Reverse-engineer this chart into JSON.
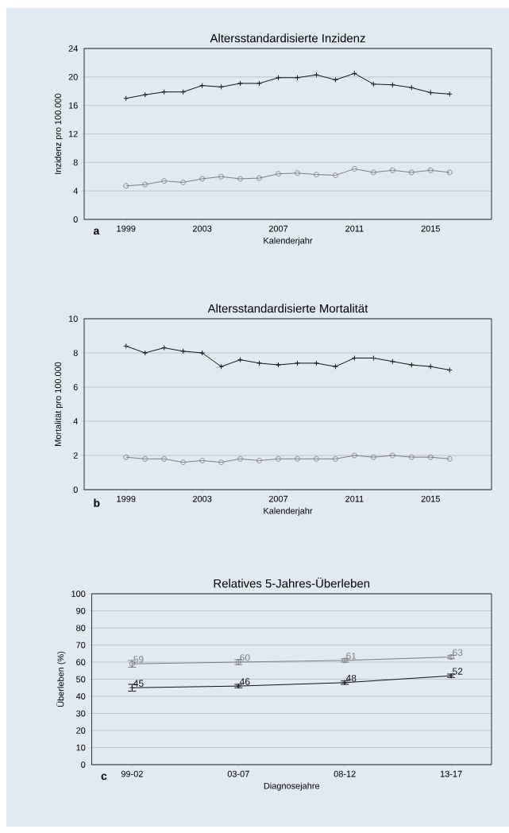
{
  "chart_data": [
    {
      "type": "line",
      "title": "Altersstandardisierte Inzidenz",
      "xlabel": "Kalenderjahr",
      "ylabel": "Inzidenz pro 100.000",
      "annotations": [
        "a"
      ],
      "x": [
        1999,
        2000,
        2001,
        2002,
        2003,
        2004,
        2005,
        2006,
        2007,
        2008,
        2009,
        2010,
        2011,
        2012,
        2013,
        2014,
        2015,
        2016
      ],
      "series": [
        {
          "color": "#111111",
          "marker": "cross",
          "values": [
            17.0,
            17.5,
            17.9,
            17.9,
            18.8,
            18.6,
            19.1,
            19.1,
            19.9,
            19.9,
            20.3,
            19.6,
            20.5,
            19.0,
            18.9,
            18.5,
            17.8,
            17.6
          ]
        },
        {
          "color": "#7f7f7f",
          "marker": "circle",
          "values": [
            4.7,
            4.9,
            5.4,
            5.2,
            5.7,
            6.0,
            5.7,
            5.8,
            6.4,
            6.5,
            6.3,
            6.2,
            7.1,
            6.6,
            6.9,
            6.6,
            6.9,
            6.6
          ]
        }
      ],
      "xlim": [
        1996.8,
        2018.2
      ],
      "xticks": [
        1999,
        2003,
        2007,
        2011,
        2015
      ],
      "ylim": [
        0,
        24
      ],
      "yticks": [
        0,
        4,
        8,
        12,
        16,
        20,
        24
      ],
      "grid": "y"
    },
    {
      "type": "line",
      "title": "Altersstandardisierte Mortalität",
      "xlabel": "Kalenderjahr",
      "ylabel": "Mortalität pro 100.000",
      "annotations": [
        "b"
      ],
      "x": [
        1999,
        2000,
        2001,
        2002,
        2003,
        2004,
        2005,
        2006,
        2007,
        2008,
        2009,
        2010,
        2011,
        2012,
        2013,
        2014,
        2015,
        2016
      ],
      "series": [
        {
          "color": "#111111",
          "marker": "cross",
          "values": [
            8.4,
            8.0,
            8.3,
            8.1,
            8.0,
            7.2,
            7.6,
            7.4,
            7.3,
            7.4,
            7.4,
            7.2,
            7.7,
            7.7,
            7.5,
            7.3,
            7.2,
            7.0
          ]
        },
        {
          "color": "#7f7f7f",
          "marker": "circle",
          "values": [
            1.9,
            1.8,
            1.8,
            1.6,
            1.7,
            1.6,
            1.8,
            1.7,
            1.8,
            1.8,
            1.8,
            1.8,
            2.0,
            1.9,
            2.0,
            1.9,
            1.9,
            1.8
          ]
        }
      ],
      "xlim": [
        1996.8,
        2018.2
      ],
      "xticks": [
        1999,
        2003,
        2007,
        2011,
        2015
      ],
      "ylim": [
        0,
        10
      ],
      "yticks": [
        0,
        2,
        4,
        6,
        8,
        10
      ],
      "grid": "y"
    },
    {
      "type": "line",
      "title": "Relatives 5-Jahres-Überleben",
      "xlabel": "Diagnosejahre",
      "ylabel": "Überleben (%)",
      "annotations": [
        "c"
      ],
      "categories": [
        "99-02",
        "03-07",
        "08-12",
        "13-17"
      ],
      "series": [
        {
          "color": "#7f7f7f",
          "marker": "circle",
          "values": [
            59,
            60,
            61,
            63
          ],
          "errors": [
            2,
            1.5,
            1,
            1
          ]
        },
        {
          "color": "#111111",
          "marker": "cross",
          "values": [
            45,
            46,
            48,
            52
          ],
          "errors": [
            2,
            1,
            1,
            1
          ]
        }
      ],
      "ylim": [
        0,
        100
      ],
      "yticks": [
        0,
        10,
        20,
        30,
        40,
        50,
        60,
        70,
        80,
        90,
        100
      ],
      "grid": "y",
      "data_labels": true
    }
  ]
}
